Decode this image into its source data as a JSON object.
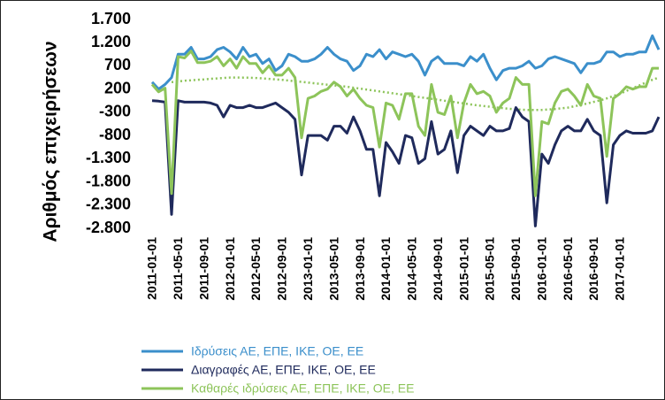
{
  "chart_data": {
    "type": "line",
    "y_label": "Αριθμός επιχειρήσεων",
    "categories": [
      "2011-01-01",
      null,
      null,
      null,
      "2011-05-01",
      null,
      null,
      null,
      "2011-09-01",
      null,
      null,
      null,
      "2012-01-01",
      null,
      null,
      null,
      "2012-05-01",
      null,
      null,
      null,
      "2012-09-01",
      null,
      null,
      null,
      "2013-01-01",
      null,
      null,
      null,
      "2013-05-01",
      null,
      null,
      null,
      "2013-09-01",
      null,
      null,
      null,
      "2014-01-01",
      null,
      null,
      null,
      "2014-05-01",
      null,
      null,
      null,
      "2014-09-01",
      null,
      null,
      null,
      "2015-01-01",
      null,
      null,
      null,
      "2015-05-01",
      null,
      null,
      null,
      "2015-09-01",
      null,
      null,
      null,
      "2016-01-01",
      null,
      null,
      null,
      "2016-05-01",
      null,
      null,
      null,
      "2016-09-01",
      null,
      null,
      null,
      "2017-01-01",
      null,
      null,
      null,
      null,
      null,
      null
    ],
    "ylim": [
      -2800,
      1700
    ],
    "yticks": [
      {
        "value": 1700,
        "label": "1.700"
      },
      {
        "value": 1200,
        "label": "1.200"
      },
      700,
      200,
      -300,
      -800,
      {
        "value": -1300,
        "label": "-1.300"
      },
      {
        "value": -1800,
        "label": "-1.800"
      },
      {
        "value": -2300,
        "label": "-2.300"
      },
      {
        "value": -2800,
        "label": "-2.800"
      }
    ],
    "grid": false,
    "series": [
      {
        "name": "Ιδρύσεις ΑΕ, ΕΠΕ, ΙΚΕ, ΟΕ, ΕΕ",
        "color": "#3b8fcb",
        "values": [
          350,
          200,
          300,
          450,
          950,
          950,
          1100,
          850,
          850,
          900,
          1050,
          1100,
          1000,
          850,
          1100,
          900,
          950,
          750,
          850,
          600,
          700,
          950,
          900,
          800,
          800,
          850,
          950,
          1100,
          950,
          850,
          800,
          600,
          700,
          950,
          900,
          1050,
          850,
          1000,
          950,
          900,
          950,
          800,
          500,
          800,
          900,
          750,
          750,
          750,
          700,
          900,
          800,
          950,
          650,
          400,
          600,
          650,
          650,
          700,
          800,
          650,
          700,
          850,
          900,
          850,
          800,
          750,
          550,
          750,
          750,
          800,
          1000,
          1000,
          900,
          950,
          950,
          1000,
          1000,
          1350,
          1050
        ]
      },
      {
        "name": "Διαγραφές ΑΕ, ΕΠΕ, ΙΚΕ, ΟΕ, ΕΕ",
        "color": "#1f2a5c",
        "values": [
          -50,
          -60,
          -80,
          -2500,
          -50,
          -80,
          -80,
          -80,
          -80,
          -100,
          -150,
          -400,
          -150,
          -200,
          -200,
          -150,
          -200,
          -200,
          -150,
          -100,
          -200,
          -300,
          -450,
          -1650,
          -800,
          -800,
          -800,
          -900,
          -600,
          -600,
          -750,
          -400,
          -700,
          -1100,
          -1100,
          -2100,
          -950,
          -1150,
          -1400,
          -800,
          -850,
          -1400,
          -1300,
          -500,
          -1200,
          -1100,
          -700,
          -1600,
          -800,
          -600,
          -700,
          -800,
          -600,
          -700,
          -700,
          -650,
          -200,
          -400,
          -500,
          -2750,
          -1200,
          -1400,
          -1000,
          -700,
          -600,
          -700,
          -700,
          -450,
          -700,
          -800,
          -2250,
          -1000,
          -800,
          -700,
          -750,
          -750,
          -750,
          -700,
          -400
        ]
      },
      {
        "name": "Καθαρές ιδρύσεις ΑΕ, ΕΠΕ, ΙΚΕ, ΟΕ, ΕΕ",
        "color": "#8dc45a",
        "values": [
          300,
          140,
          220,
          -2050,
          900,
          870,
          1020,
          770,
          770,
          800,
          900,
          700,
          850,
          650,
          900,
          750,
          750,
          550,
          700,
          500,
          500,
          650,
          450,
          -850,
          0,
          50,
          150,
          200,
          350,
          250,
          50,
          200,
          0,
          -150,
          -200,
          -1050,
          -100,
          -150,
          -450,
          100,
          100,
          -600,
          -800,
          300,
          -300,
          -350,
          50,
          -850,
          -100,
          300,
          100,
          150,
          50,
          -300,
          -100,
          0,
          450,
          300,
          300,
          -2100,
          -500,
          -550,
          -100,
          150,
          200,
          50,
          -150,
          300,
          50,
          0,
          -1250,
          0,
          100,
          250,
          200,
          250,
          250,
          650,
          650
        ]
      }
    ],
    "trendline": {
      "color": "#8dc45a",
      "values": [
        null,
        null,
        null,
        350,
        365,
        380,
        390,
        400,
        410,
        420,
        430,
        440,
        450,
        450,
        448,
        445,
        440,
        430,
        420,
        410,
        400,
        385,
        370,
        355,
        340,
        325,
        310,
        295,
        280,
        265,
        250,
        230,
        210,
        190,
        170,
        150,
        130,
        110,
        90,
        70,
        50,
        30,
        10,
        -10,
        -30,
        -50,
        -70,
        -90,
        -110,
        -130,
        -150,
        -165,
        -180,
        -195,
        -210,
        -225,
        -235,
        -245,
        -250,
        -250,
        -248,
        -240,
        -230,
        -215,
        -200,
        -170,
        -140,
        -110,
        -75,
        -40,
        0,
        50,
        100,
        160,
        220,
        280,
        340,
        400,
        450
      ]
    }
  }
}
